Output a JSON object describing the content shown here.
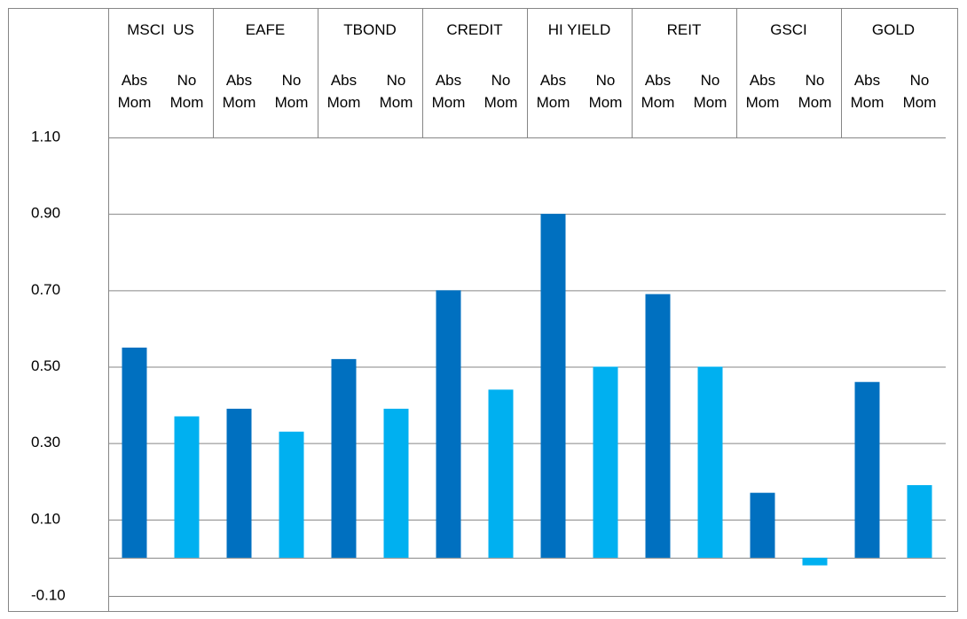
{
  "chart_data": {
    "type": "bar",
    "categories": [
      "MSCI  US",
      "EAFE",
      "TBOND",
      "CREDIT",
      "HI YIELD",
      "REIT",
      "GSCI",
      "GOLD"
    ],
    "series": [
      {
        "name": "Abs Mom",
        "color": "#0070c0",
        "values": [
          0.55,
          0.39,
          0.52,
          0.7,
          0.9,
          0.69,
          0.17,
          0.46
        ]
      },
      {
        "name": "No Mom",
        "color": "#00b0f0",
        "values": [
          0.37,
          0.33,
          0.39,
          0.44,
          0.5,
          0.5,
          -0.02,
          0.19
        ]
      }
    ],
    "ylim": [
      -0.1,
      1.1
    ],
    "yticks": [
      {
        "value": -0.1,
        "label": "-0.10"
      },
      {
        "value": 0.1,
        "label": "0.10"
      },
      {
        "value": 0.3,
        "label": "0.30"
      },
      {
        "value": 0.5,
        "label": "0.50"
      },
      {
        "value": 0.7,
        "label": "0.70"
      },
      {
        "value": 0.9,
        "label": "0.90"
      },
      {
        "value": 1.1,
        "label": "1.10"
      }
    ],
    "grid": true
  }
}
